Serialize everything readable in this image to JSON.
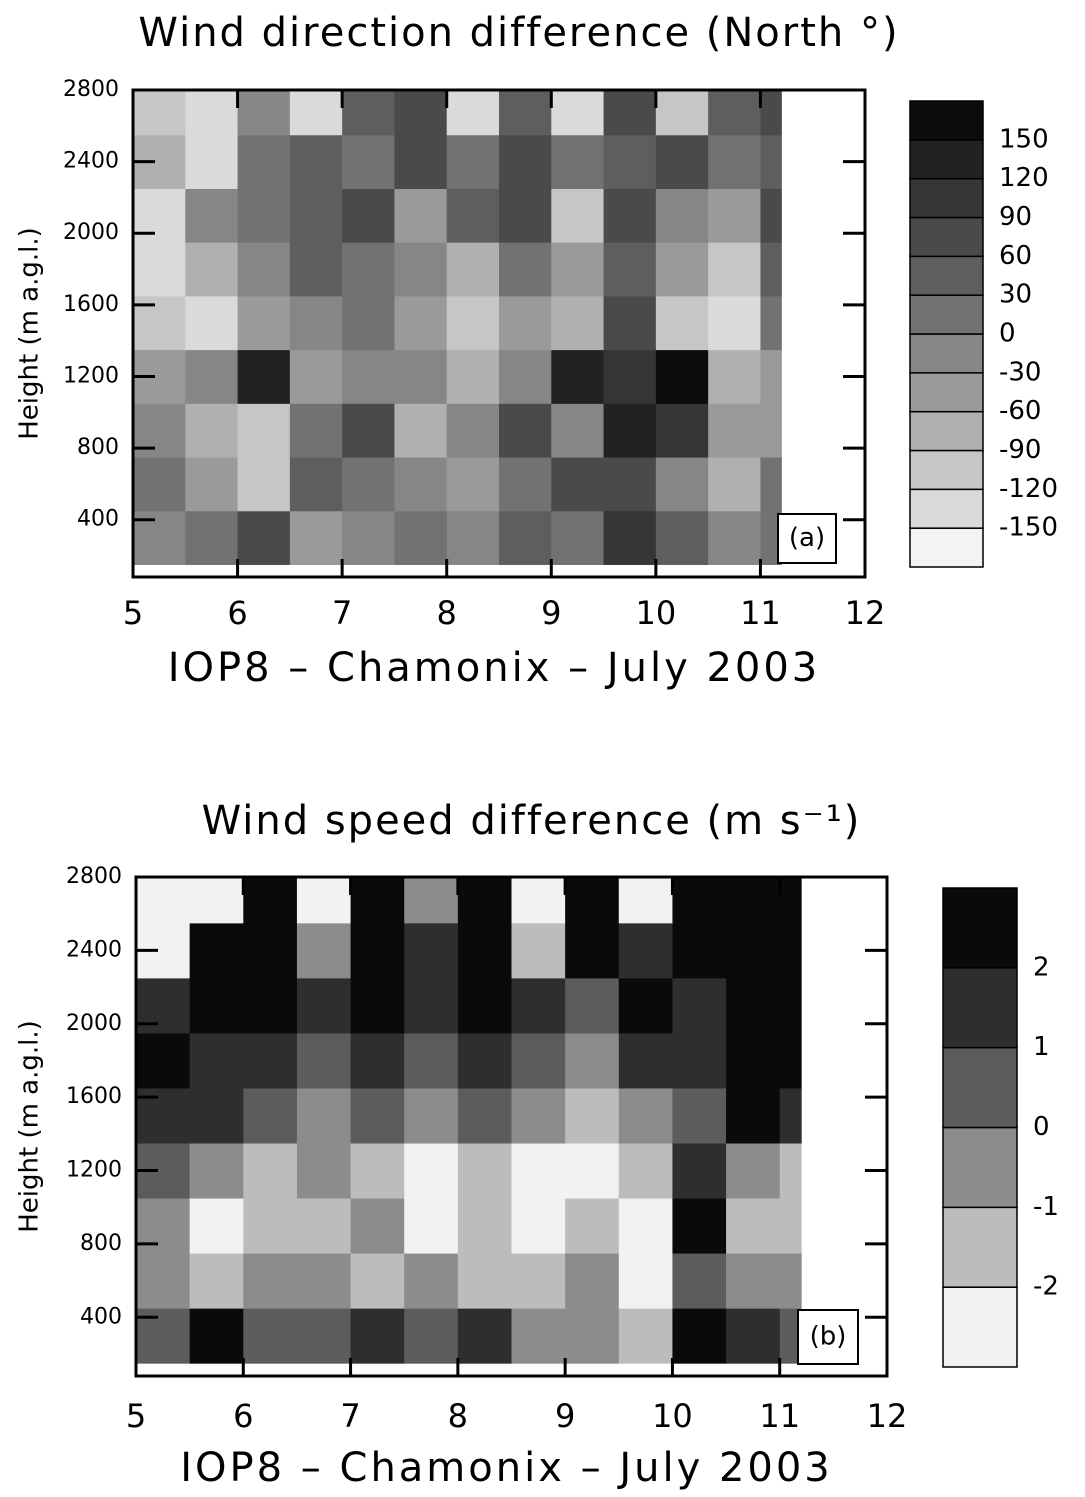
{
  "chart_data": [
    {
      "type": "heatmap",
      "title": "Wind direction difference (North °)",
      "x_label": "IOP8 – Chamonix – July 2003",
      "y_label": "Height (m a.g.l.)",
      "annotation": "(a)",
      "xlim": [
        5,
        12
      ],
      "ylim": [
        80,
        2800
      ],
      "xticks": [
        5,
        6,
        7,
        8,
        9,
        10,
        11,
        12
      ],
      "yticks": [
        400,
        800,
        1200,
        1600,
        2000,
        2400,
        2800
      ],
      "x_bins": [
        5,
        5.5,
        6,
        6.5,
        7,
        7.5,
        8,
        8.5,
        9,
        9.5,
        10,
        10.5,
        11,
        11.2
      ],
      "y_bins": [
        150,
        450,
        750,
        1050,
        1350,
        1650,
        1950,
        2250,
        2550,
        2800
      ],
      "z": [
        [
          -30,
          0,
          60,
          -60,
          -30,
          0,
          -30,
          30,
          0,
          90,
          30,
          -30,
          0
        ],
        [
          0,
          -60,
          -120,
          30,
          0,
          -30,
          -60,
          0,
          60,
          60,
          -30,
          -90,
          0
        ],
        [
          -30,
          -90,
          -120,
          0,
          60,
          -90,
          -30,
          60,
          -30,
          120,
          90,
          -60,
          -60
        ],
        [
          -60,
          -30,
          120,
          -60,
          -30,
          -30,
          -90,
          -30,
          120,
          90,
          150,
          -90,
          -60
        ],
        [
          -120,
          -150,
          -60,
          -30,
          0,
          -60,
          -120,
          -60,
          -90,
          60,
          -120,
          -150,
          0
        ],
        [
          -150,
          -90,
          -30,
          30,
          0,
          -30,
          -90,
          0,
          -60,
          30,
          -60,
          -120,
          30
        ],
        [
          -150,
          -30,
          0,
          30,
          60,
          -60,
          30,
          60,
          -120,
          60,
          -30,
          -60,
          60
        ],
        [
          -90,
          -150,
          0,
          30,
          0,
          60,
          0,
          60,
          0,
          30,
          60,
          0,
          30
        ],
        [
          -120,
          -150,
          -30,
          -150,
          30,
          60,
          -150,
          30,
          -150,
          60,
          -120,
          30,
          60
        ]
      ],
      "levels": [
        -150,
        -120,
        -90,
        -60,
        -30,
        0,
        30,
        60,
        90,
        120,
        150
      ],
      "colors": [
        "#f3f3f3",
        "#dadada",
        "#c6c6c6",
        "#b0b0b0",
        "#9a9a9a",
        "#868686",
        "#727272",
        "#5e5e5e",
        "#4a4a4a",
        "#363636",
        "#222222",
        "#0c0c0c"
      ]
    },
    {
      "type": "heatmap",
      "title": "Wind speed difference (m s⁻¹)",
      "x_label": "IOP8 – Chamonix – July 2003",
      "y_label": "Height (m a.g.l.)",
      "annotation": "(b)",
      "xlim": [
        5,
        12
      ],
      "ylim": [
        80,
        2800
      ],
      "xticks": [
        5,
        6,
        7,
        8,
        9,
        10,
        11,
        12
      ],
      "yticks": [
        400,
        800,
        1200,
        1600,
        2000,
        2400,
        2800
      ],
      "x_bins": [
        5,
        5.5,
        6,
        6.5,
        7,
        7.5,
        8,
        8.5,
        9,
        9.5,
        10,
        10.5,
        11,
        11.2
      ],
      "y_bins": [
        150,
        450,
        750,
        1050,
        1350,
        1650,
        1950,
        2250,
        2550,
        2800
      ],
      "z": [
        [
          0,
          2,
          0,
          0,
          1,
          0,
          1,
          -1,
          -1,
          -2,
          2,
          1,
          0
        ],
        [
          -1,
          -2,
          -1,
          -1,
          -2,
          -1,
          -2,
          -2,
          -1,
          -3,
          0,
          -1,
          -1
        ],
        [
          -1,
          -3,
          -2,
          -2,
          -1,
          -3,
          -2,
          -3,
          -2,
          -3,
          2,
          -2,
          -2
        ],
        [
          0,
          -1,
          -2,
          -1,
          -2,
          -3,
          -2,
          -3,
          -3,
          -2,
          1,
          -1,
          -2
        ],
        [
          1,
          1,
          0,
          -1,
          0,
          -1,
          0,
          -1,
          -2,
          -1,
          0,
          2,
          1
        ],
        [
          2,
          1,
          1,
          0,
          1,
          0,
          1,
          0,
          -1,
          1,
          1,
          3,
          2
        ],
        [
          1,
          2,
          2,
          1,
          2,
          1,
          2,
          1,
          0,
          2,
          1,
          3,
          3
        ],
        [
          -3,
          2,
          3,
          -1,
          2,
          1,
          2,
          -2,
          2,
          1,
          2,
          3,
          3
        ],
        [
          -3,
          -3,
          2,
          -3,
          3,
          -1,
          3,
          -3,
          3,
          -3,
          2,
          3,
          3
        ]
      ],
      "levels": [
        -2,
        -1,
        0,
        1,
        2
      ],
      "colors": [
        "#f2f2f2",
        "#bcbcbc",
        "#8c8c8c",
        "#5c5c5c",
        "#2e2e2e",
        "#0a0a0a"
      ]
    }
  ]
}
